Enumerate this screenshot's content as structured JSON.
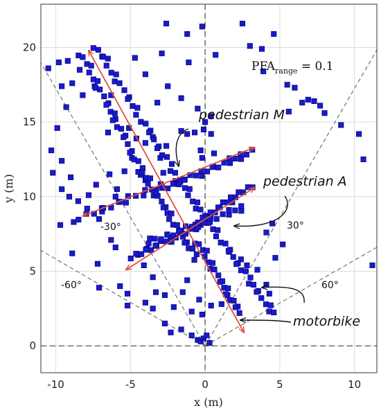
{
  "chart_data": {
    "type": "scatter",
    "xlabel": "x (m)",
    "ylabel": "y (m)",
    "xlim": [
      -11,
      11.5
    ],
    "ylim": [
      -1.8,
      22.9
    ],
    "grid": true,
    "xticks": [
      -10,
      -5,
      0,
      5,
      10
    ],
    "yticks": [
      0,
      5,
      10,
      15,
      20
    ],
    "xtick_labels": [
      "-10",
      "-5",
      "0",
      "5",
      "10"
    ],
    "ytick_labels": [
      "0",
      "5",
      "10",
      "15",
      "20"
    ],
    "marker_color": "#1a1acc",
    "arrow_color": "#e0503c",
    "pfa_label": {
      "main": "PFA",
      "sub": "range",
      "value": " = 0.1"
    },
    "annotations": {
      "pedestrian_m": "pedestrian M",
      "pedestrian_a": "pedestrian A",
      "motorbike": "motorbike"
    },
    "angle_labels": {
      "minus30": "-30°",
      "plus30": "30°",
      "minus60": "-60°",
      "plus60": "60°"
    },
    "tracks": [
      {
        "label": "pedestrian M",
        "from": [
          -8.2,
          8.7
        ],
        "to": [
          3.3,
          13.3
        ]
      },
      {
        "label": "pedestrian A",
        "from": [
          -5.3,
          5.1
        ],
        "to": [
          3.3,
          10.6
        ]
      },
      {
        "label": "motorbike",
        "from": [
          -7.8,
          19.8
        ],
        "to": [
          2.6,
          0.9
        ]
      }
    ],
    "fov_lines": [
      {
        "angle_deg": -30,
        "to": [
          -11.6,
          20.0
        ]
      },
      {
        "angle_deg": 30,
        "to": [
          11.6,
          20.0
        ]
      },
      {
        "angle_deg": -60,
        "to": [
          -11.0,
          6.4
        ]
      },
      {
        "angle_deg": 60,
        "to": [
          11.5,
          6.6
        ]
      }
    ],
    "points": [
      [
        -10.5,
        18.6
      ],
      [
        -9.8,
        19.0
      ],
      [
        -8.4,
        18.5
      ],
      [
        -9.2,
        19.1
      ],
      [
        -9.6,
        17.4
      ],
      [
        -9.3,
        16.0
      ],
      [
        -8.9,
        17.6
      ],
      [
        -8.2,
        16.8
      ],
      [
        -9.9,
        14.6
      ],
      [
        -10.3,
        13.1
      ],
      [
        -9.6,
        12.4
      ],
      [
        -10.2,
        11.6
      ],
      [
        -9.0,
        11.3
      ],
      [
        -9.6,
        10.5
      ],
      [
        -9.1,
        10.0
      ],
      [
        -8.5,
        9.7
      ],
      [
        -6.0,
        15.2
      ],
      [
        -5.1,
        14.6
      ],
      [
        -6.5,
        14.3
      ],
      [
        -4.6,
        13.9
      ],
      [
        -4.0,
        13.6
      ],
      [
        -4.9,
        12.6
      ],
      [
        -5.4,
        11.7
      ],
      [
        -6.4,
        11.5
      ],
      [
        -5.9,
        10.5
      ],
      [
        -7.3,
        10.8
      ],
      [
        -7.8,
        10.1
      ],
      [
        -6.9,
        9.0
      ],
      [
        -7.1,
        8.5
      ],
      [
        -5.3,
        9.6
      ],
      [
        -6.0,
        10.0
      ],
      [
        -4.0,
        11.1
      ],
      [
        -3.3,
        10.3
      ],
      [
        -2.9,
        10.7
      ],
      [
        -2.8,
        11.6
      ],
      [
        -3.0,
        12.6
      ],
      [
        -2.6,
        13.4
      ],
      [
        -3.5,
        14.0
      ],
      [
        -1.6,
        14.4
      ],
      [
        -1.2,
        14.2
      ],
      [
        -0.7,
        14.3
      ],
      [
        -0.1,
        14.5
      ],
      [
        0.4,
        14.2
      ],
      [
        0.0,
        15.0
      ],
      [
        0.4,
        15.4
      ],
      [
        -0.3,
        13.1
      ],
      [
        -0.2,
        12.6
      ],
      [
        0.6,
        12.9
      ],
      [
        -2.9,
        19.6
      ],
      [
        -2.6,
        21.6
      ],
      [
        -1.2,
        20.9
      ],
      [
        -1.1,
        19.0
      ],
      [
        -0.2,
        21.4
      ],
      [
        0.7,
        19.5
      ],
      [
        2.5,
        21.6
      ],
      [
        3.0,
        20.1
      ],
      [
        3.8,
        19.9
      ],
      [
        4.6,
        20.9
      ],
      [
        3.9,
        18.4
      ],
      [
        5.5,
        17.5
      ],
      [
        6.0,
        17.3
      ],
      [
        6.5,
        16.3
      ],
      [
        6.9,
        16.5
      ],
      [
        7.3,
        16.4
      ],
      [
        7.7,
        16.1
      ],
      [
        8.0,
        15.6
      ],
      [
        9.1,
        14.8
      ],
      [
        10.3,
        14.2
      ],
      [
        10.6,
        12.5
      ],
      [
        11.2,
        5.4
      ],
      [
        5.6,
        15.7
      ],
      [
        -4.0,
        18.2
      ],
      [
        -2.5,
        17.4
      ],
      [
        -1.6,
        16.6
      ],
      [
        -3.2,
        16.3
      ],
      [
        -0.5,
        15.9
      ],
      [
        -6.9,
        19.4
      ],
      [
        -4.7,
        19.3
      ],
      [
        -6.3,
        16.8
      ],
      [
        -7.4,
        17.4
      ],
      [
        -3.7,
        7.2
      ],
      [
        -3.9,
        6.5
      ],
      [
        -4.5,
        6.1
      ],
      [
        -4.1,
        5.4
      ],
      [
        -3.5,
        4.6
      ],
      [
        -3.3,
        3.6
      ],
      [
        -2.7,
        3.4
      ],
      [
        -3.5,
        2.5
      ],
      [
        -2.1,
        2.6
      ],
      [
        -1.5,
        3.6
      ],
      [
        -1.2,
        4.4
      ],
      [
        -0.9,
        2.3
      ],
      [
        -0.4,
        3.1
      ],
      [
        -0.2,
        2.1
      ],
      [
        0.4,
        2.7
      ],
      [
        1.1,
        2.8
      ],
      [
        1.5,
        3.4
      ],
      [
        2.8,
        5.4
      ],
      [
        3.5,
        5.1
      ],
      [
        4.1,
        4.1
      ],
      [
        4.3,
        3.5
      ],
      [
        4.7,
        5.9
      ],
      [
        4.5,
        8.2
      ],
      [
        4.1,
        7.6
      ],
      [
        5.2,
        6.8
      ],
      [
        1.6,
        6.3
      ],
      [
        2.4,
        5.8
      ],
      [
        -6.3,
        7.1
      ],
      [
        -6.0,
        6.6
      ],
      [
        -7.2,
        5.5
      ],
      [
        -7.1,
        3.9
      ],
      [
        -5.7,
        4.0
      ],
      [
        -5.2,
        2.7
      ],
      [
        -4.0,
        2.9
      ],
      [
        -2.7,
        1.5
      ],
      [
        -1.6,
        1.1
      ],
      [
        -0.9,
        0.7
      ],
      [
        -0.5,
        0.4
      ],
      [
        -0.3,
        0.3
      ],
      [
        -0.1,
        0.5
      ],
      [
        0.3,
        0.2
      ],
      [
        0.1,
        0.7
      ],
      [
        -2.3,
        0.9
      ],
      [
        -5.2,
        3.5
      ],
      [
        -8.9,
        6.2
      ],
      [
        -9.7,
        8.1
      ],
      [
        -8.8,
        8.3
      ],
      [
        -7.9,
        9.2
      ]
    ],
    "dense_clusters": [
      {
        "from": [
          -8.3,
          19.6
        ],
        "to": [
          -4.2,
          11.6
        ],
        "n": 26
      },
      {
        "from": [
          -4.3,
          11.8
        ],
        "to": [
          -0.6,
          5.9
        ],
        "n": 26
      },
      {
        "from": [
          -0.5,
          7.0
        ],
        "to": [
          2.3,
          2.2
        ],
        "n": 20
      },
      {
        "from": [
          -7.3,
          20.1
        ],
        "to": [
          -1.8,
          11.2
        ],
        "n": 28
      },
      {
        "from": [
          -1.8,
          11.2
        ],
        "to": [
          4.6,
          2.1
        ],
        "n": 34
      },
      {
        "from": [
          -8.3,
          8.6
        ],
        "to": [
          -3.1,
          10.7
        ],
        "n": 14
      },
      {
        "from": [
          -3.1,
          10.4
        ],
        "to": [
          3.1,
          13.0
        ],
        "n": 24
      },
      {
        "from": [
          -4.8,
          6.0
        ],
        "to": [
          -0.3,
          8.1
        ],
        "n": 20
      },
      {
        "from": [
          -0.3,
          8.4
        ],
        "to": [
          3.0,
          10.7
        ],
        "n": 18
      },
      {
        "from": [
          -3.6,
          7.0
        ],
        "to": [
          2.6,
          9.3
        ],
        "n": 22
      }
    ]
  }
}
